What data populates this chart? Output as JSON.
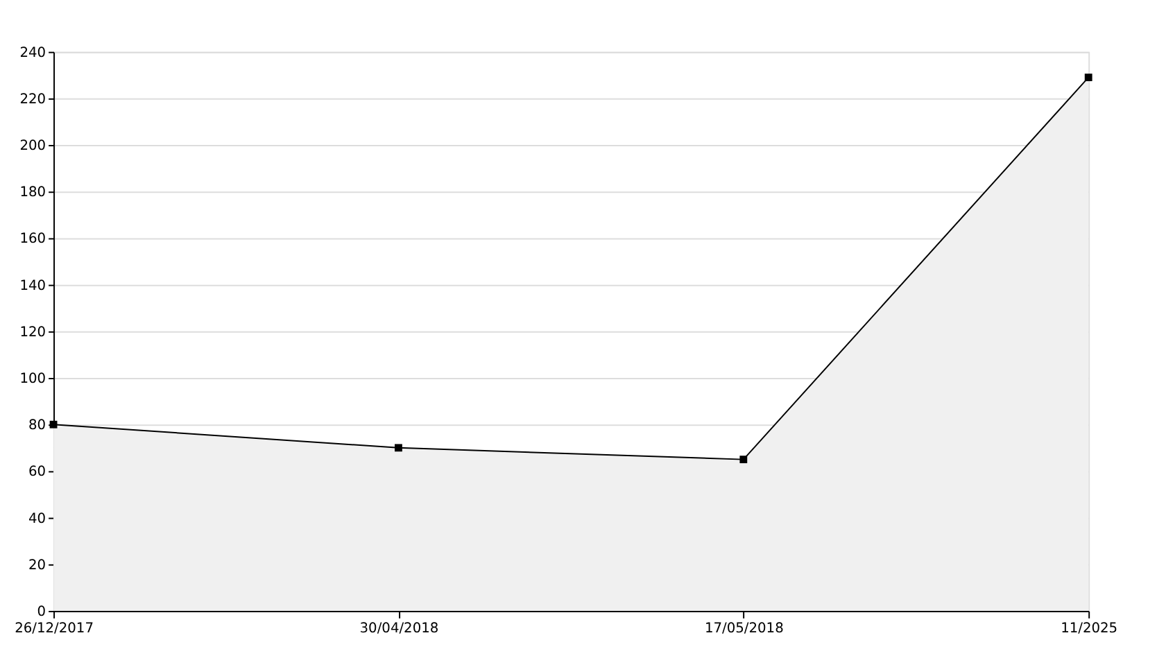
{
  "chart_data": {
    "type": "area",
    "categories": [
      "26/12/2017",
      "30/04/2018",
      "17/05/2018",
      "11/2025"
    ],
    "series": [
      {
        "color": "#f0f0f0",
        "values": [
          80,
          70,
          65,
          229
        ]
      }
    ],
    "ylim": [
      0,
      240
    ],
    "yticks": [
      0,
      20,
      40,
      60,
      80,
      100,
      120,
      140,
      160,
      180,
      200,
      220,
      240
    ],
    "grid": "y",
    "marker": "square",
    "line_style": "solid"
  }
}
